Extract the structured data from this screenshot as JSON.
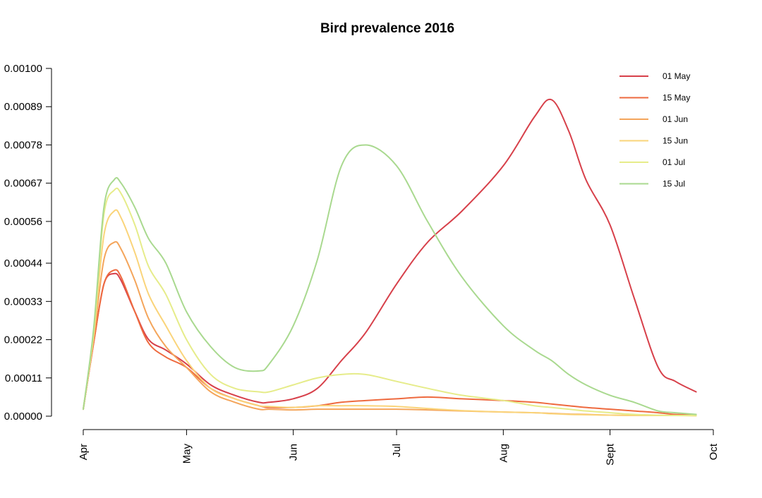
{
  "chart_data": {
    "type": "line",
    "title": "Bird prevalence 2016",
    "xlabel": "",
    "ylabel": "",
    "x_ticks": [
      "Apr",
      "May",
      "Jun",
      "Jul",
      "Aug",
      "Sept",
      "Oct"
    ],
    "x_tick_dates": [
      "2016-04-01",
      "2016-05-01",
      "2016-06-01",
      "2016-07-01",
      "2016-08-01",
      "2016-09-01",
      "2016-10-01"
    ],
    "xlim": [
      "2016-04-01",
      "2016-10-01"
    ],
    "y_ticks": [
      "0.00000",
      "0.00011",
      "0.00022",
      "0.00033",
      "0.00044",
      "0.00056",
      "0.00067",
      "0.00078",
      "0.00089",
      "0.00100"
    ],
    "ylim": [
      0,
      0.001
    ],
    "grid": false,
    "legend_position": "top-right",
    "x": [
      "2016-04-01",
      "2016-04-04",
      "2016-04-07",
      "2016-04-10",
      "2016-04-12",
      "2016-04-16",
      "2016-04-20",
      "2016-04-25",
      "2016-05-01",
      "2016-05-08",
      "2016-05-15",
      "2016-05-22",
      "2016-05-25",
      "2016-06-01",
      "2016-06-08",
      "2016-06-15",
      "2016-06-22",
      "2016-07-01",
      "2016-07-10",
      "2016-07-20",
      "2016-08-01",
      "2016-08-10",
      "2016-08-15",
      "2016-08-20",
      "2016-08-25",
      "2016-09-01",
      "2016-09-08",
      "2016-09-15",
      "2016-09-20",
      "2016-09-26"
    ],
    "series": [
      {
        "name": "01 May",
        "color": "#d7404a",
        "values": [
          2e-05,
          0.00021,
          0.00038,
          0.00041,
          0.00039,
          0.0003,
          0.00022,
          0.00019,
          0.00015,
          9e-05,
          6e-05,
          4e-05,
          4e-05,
          5e-05,
          8e-05,
          0.00016,
          0.00024,
          0.00038,
          0.0005,
          0.00059,
          0.00072,
          0.00086,
          0.00091,
          0.00082,
          0.00068,
          0.00055,
          0.00034,
          0.00014,
          0.0001,
          7e-05
        ]
      },
      {
        "name": "15 May",
        "color": "#ee6a3f",
        "values": [
          2e-05,
          0.00021,
          0.00038,
          0.00042,
          0.0004,
          0.0003,
          0.00021,
          0.00017,
          0.00014,
          8e-05,
          5e-05,
          3e-05,
          2.5e-05,
          2.5e-05,
          3e-05,
          4e-05,
          4.5e-05,
          5e-05,
          5.5e-05,
          5e-05,
          4.5e-05,
          4e-05,
          3.5e-05,
          3e-05,
          2.5e-05,
          2e-05,
          1.5e-05,
          1e-05,
          5e-06,
          5e-06
        ]
      },
      {
        "name": "01 Jun",
        "color": "#f4a55b",
        "values": [
          2e-05,
          0.00022,
          0.00045,
          0.0005,
          0.00048,
          0.00039,
          0.00028,
          0.0002,
          0.00014,
          7e-05,
          4e-05,
          2e-05,
          2e-05,
          1.8e-05,
          2e-05,
          2e-05,
          2e-05,
          2e-05,
          1.8e-05,
          1.5e-05,
          1.2e-05,
          1e-05,
          8e-06,
          6e-06,
          5e-06,
          3e-06,
          2e-06,
          2e-06,
          2e-06,
          2e-06
        ]
      },
      {
        "name": "15 Jun",
        "color": "#fad47a",
        "values": [
          2e-05,
          0.00023,
          0.00052,
          0.00059,
          0.00057,
          0.00047,
          0.00035,
          0.00026,
          0.00016,
          8e-05,
          5e-05,
          3e-05,
          2.8e-05,
          2.5e-05,
          3e-05,
          3e-05,
          3e-05,
          2.8e-05,
          2.2e-05,
          1.6e-05,
          1.2e-05,
          1e-05,
          7e-06,
          5e-06,
          4e-06,
          3e-06,
          2e-06,
          2e-06,
          2e-06,
          1e-06
        ]
      },
      {
        "name": "01 Jul",
        "color": "#e6ec8a",
        "values": [
          2e-05,
          0.00024,
          0.00058,
          0.00065,
          0.00064,
          0.00055,
          0.00043,
          0.00035,
          0.00022,
          0.00012,
          8e-05,
          7e-05,
          7e-05,
          9e-05,
          0.00011,
          0.00012,
          0.00012,
          0.0001,
          8e-05,
          6e-05,
          4.5e-05,
          3e-05,
          2.5e-05,
          2e-05,
          1.5e-05,
          1e-05,
          5e-06,
          3e-06,
          2e-06,
          2e-06
        ]
      },
      {
        "name": "15 Jul",
        "color": "#a9d98f",
        "values": [
          2e-05,
          0.00025,
          0.0006,
          0.00068,
          0.00067,
          0.0006,
          0.00051,
          0.00044,
          0.0003,
          0.0002,
          0.00014,
          0.00013,
          0.00015,
          0.00026,
          0.00045,
          0.00072,
          0.00078,
          0.00072,
          0.00056,
          0.0004,
          0.00026,
          0.00019,
          0.00016,
          0.00012,
          9e-05,
          6e-05,
          4e-05,
          1.5e-05,
          1e-05,
          5e-06
        ]
      }
    ]
  }
}
